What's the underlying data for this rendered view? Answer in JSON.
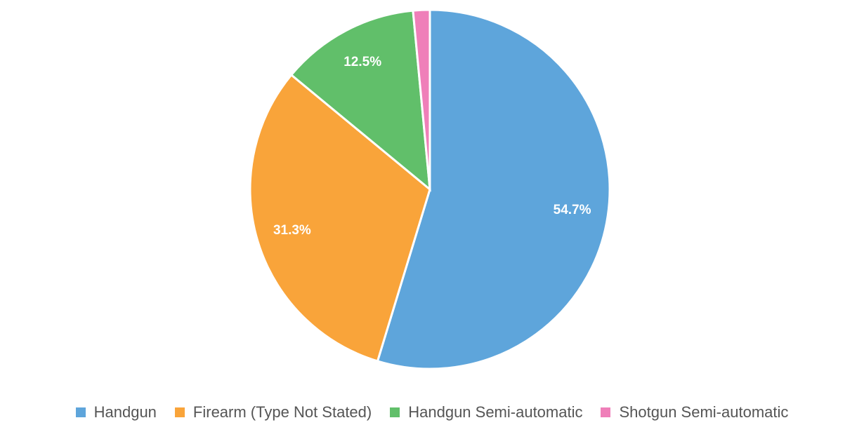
{
  "chart_data": {
    "type": "pie",
    "categories": [
      "Handgun",
      "Firearm (Type Not Stated)",
      "Handgun Semi-automatic",
      "Shotgun Semi-automatic"
    ],
    "values": [
      54.7,
      31.3,
      12.5,
      1.5
    ],
    "value_labels": [
      "54.7%",
      "31.3%",
      "12.5%",
      null
    ],
    "colors": [
      "#5ea5db",
      "#f9a43a",
      "#61bf6a",
      "#ef7fb9"
    ],
    "legend": "bottom"
  }
}
